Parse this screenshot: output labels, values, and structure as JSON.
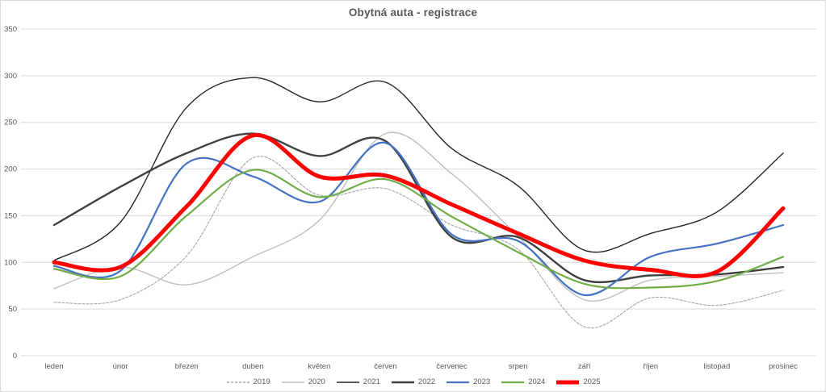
{
  "chart_data": {
    "type": "line",
    "title": "Obytná auta - registrace",
    "categories": [
      "leden",
      "únor",
      "březen",
      "duben",
      "květen",
      "červen",
      "červenec",
      "srpen",
      "září",
      "říjen",
      "listopad",
      "prosinec"
    ],
    "y_ticks": [
      0,
      50,
      100,
      150,
      200,
      250,
      300,
      350
    ],
    "ylim": [
      0,
      350
    ],
    "grid": true,
    "smooth": true,
    "legend_position": "bottom",
    "gridline_color": "#d9d9d9",
    "label_color": "#595959",
    "series": [
      {
        "name": "2019",
        "color": "#a6a6a6",
        "dash": "3,2",
        "width": 1.1,
        "values": [
          57,
          60,
          107,
          212,
          172,
          179,
          140,
          114,
          31,
          62,
          54,
          70
        ]
      },
      {
        "name": "2020",
        "color": "#bfbfbf",
        "dash": "",
        "width": 1.4,
        "values": [
          72,
          95,
          76,
          106,
          145,
          238,
          195,
          128,
          60,
          81,
          85,
          89
        ]
      },
      {
        "name": "2021",
        "color": "#262626",
        "dash": "",
        "width": 1.4,
        "values": [
          102,
          143,
          266,
          298,
          272,
          293,
          222,
          182,
          113,
          131,
          154,
          217
        ]
      },
      {
        "name": "2022",
        "color": "#404040",
        "dash": "",
        "width": 2.4,
        "values": [
          140,
          181,
          217,
          238,
          214,
          230,
          127,
          127,
          81,
          86,
          87,
          95
        ]
      },
      {
        "name": "2023",
        "color": "#4472c4",
        "dash": "",
        "width": 2.2,
        "values": [
          96,
          91,
          206,
          192,
          165,
          228,
          130,
          123,
          65,
          106,
          120,
          140
        ]
      },
      {
        "name": "2024",
        "color": "#70ad47",
        "dash": "",
        "width": 2.2,
        "values": [
          93,
          85,
          150,
          199,
          170,
          189,
          149,
          111,
          77,
          73,
          80,
          106
        ]
      },
      {
        "name": "2025",
        "color": "#ff0000",
        "dash": "",
        "width": 5,
        "values": [
          100,
          95,
          160,
          236,
          192,
          193,
          162,
          131,
          102,
          92,
          90,
          158
        ]
      }
    ]
  }
}
